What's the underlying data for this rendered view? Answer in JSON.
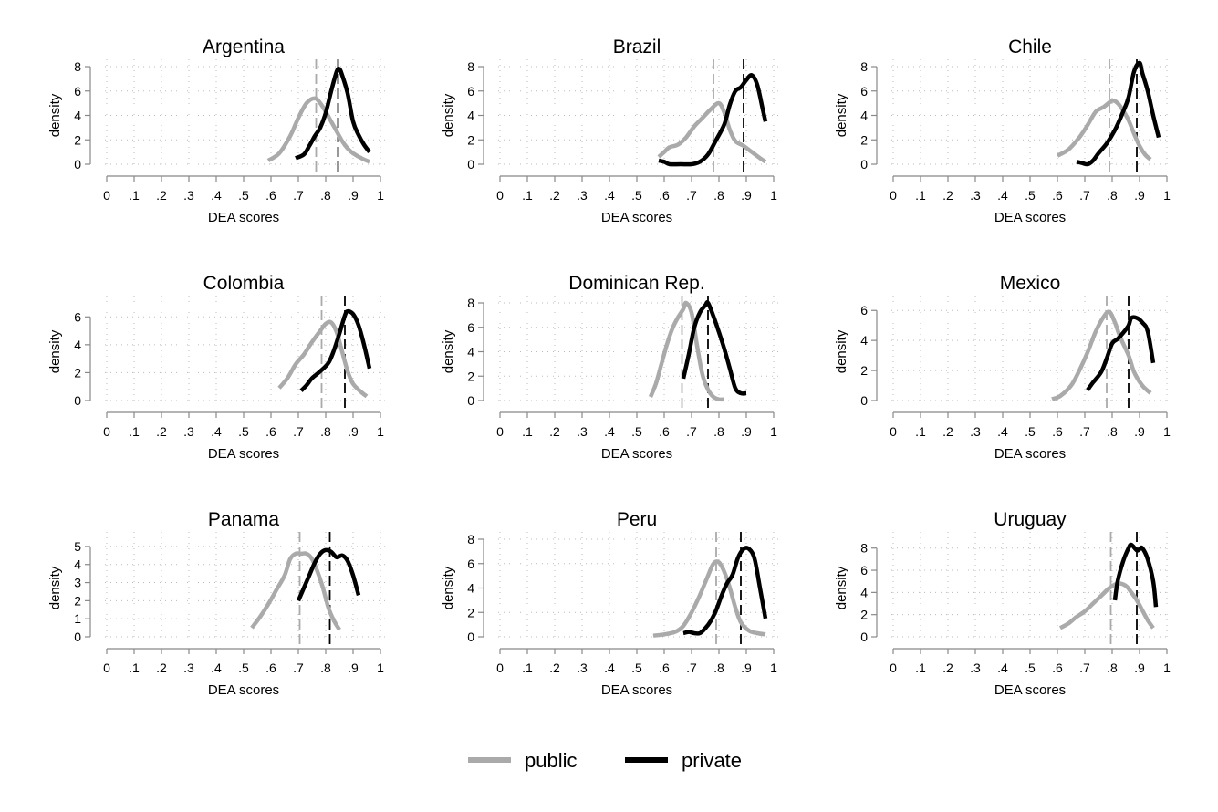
{
  "chart_data": {
    "type": "line",
    "layout": "3x3 small multiples",
    "legend": {
      "position": "bottom-center",
      "entries": [
        {
          "name": "public",
          "color": "#aaaaaa"
        },
        {
          "name": "private",
          "color": "#000000"
        }
      ]
    },
    "colors": {
      "public": "#aaaaaa",
      "private": "#000000",
      "grid": "#bbbbbb",
      "axis": "#888888"
    },
    "x_ticks": [
      "0",
      ".1",
      ".2",
      ".3",
      ".4",
      ".5",
      ".6",
      ".7",
      ".8",
      ".9",
      "1"
    ],
    "panels": [
      {
        "title": "Argentina",
        "xlabel": "DEA scores",
        "ylabel": "density",
        "xlim": [
          0,
          1
        ],
        "ylim": [
          0,
          8
        ],
        "y_ticks": [
          0,
          2,
          4,
          6,
          8
        ],
        "mean_public": 0.765,
        "mean_private": 0.845,
        "public": [
          [
            0.59,
            0.3
          ],
          [
            0.63,
            0.9
          ],
          [
            0.67,
            2.3
          ],
          [
            0.7,
            3.8
          ],
          [
            0.73,
            5.0
          ],
          [
            0.76,
            5.4
          ],
          [
            0.78,
            5.0
          ],
          [
            0.8,
            4.3
          ],
          [
            0.82,
            3.5
          ],
          [
            0.84,
            2.7
          ],
          [
            0.86,
            1.9
          ],
          [
            0.88,
            1.3
          ],
          [
            0.9,
            0.9
          ],
          [
            0.93,
            0.5
          ],
          [
            0.96,
            0.2
          ]
        ],
        "private": [
          [
            0.69,
            0.5
          ],
          [
            0.72,
            0.8
          ],
          [
            0.74,
            1.5
          ],
          [
            0.76,
            2.3
          ],
          [
            0.78,
            3.0
          ],
          [
            0.8,
            4.2
          ],
          [
            0.82,
            6.0
          ],
          [
            0.84,
            7.6
          ],
          [
            0.85,
            7.8
          ],
          [
            0.86,
            7.3
          ],
          [
            0.88,
            5.8
          ],
          [
            0.9,
            3.5
          ],
          [
            0.92,
            2.4
          ],
          [
            0.94,
            1.6
          ],
          [
            0.96,
            1.0
          ]
        ]
      },
      {
        "title": "Brazil",
        "xlabel": "DEA scores",
        "ylabel": "density",
        "xlim": [
          0,
          1
        ],
        "ylim": [
          0,
          8
        ],
        "y_ticks": [
          0,
          2,
          4,
          6,
          8
        ],
        "mean_public": 0.78,
        "mean_private": 0.89,
        "public": [
          [
            0.58,
            0.6
          ],
          [
            0.6,
            1.0
          ],
          [
            0.62,
            1.4
          ],
          [
            0.65,
            1.6
          ],
          [
            0.68,
            2.2
          ],
          [
            0.71,
            3.1
          ],
          [
            0.74,
            3.8
          ],
          [
            0.77,
            4.5
          ],
          [
            0.8,
            5.0
          ],
          [
            0.82,
            4.2
          ],
          [
            0.84,
            2.8
          ],
          [
            0.86,
            1.9
          ],
          [
            0.89,
            1.5
          ],
          [
            0.92,
            1.0
          ],
          [
            0.95,
            0.5
          ],
          [
            0.97,
            0.2
          ]
        ],
        "private": [
          [
            0.58,
            0.3
          ],
          [
            0.6,
            0.2
          ],
          [
            0.62,
            0.0
          ],
          [
            0.66,
            0.0
          ],
          [
            0.7,
            0.0
          ],
          [
            0.73,
            0.2
          ],
          [
            0.76,
            0.8
          ],
          [
            0.79,
            2.0
          ],
          [
            0.82,
            3.3
          ],
          [
            0.84,
            4.9
          ],
          [
            0.86,
            6.0
          ],
          [
            0.88,
            6.3
          ],
          [
            0.9,
            6.9
          ],
          [
            0.92,
            7.3
          ],
          [
            0.94,
            6.5
          ],
          [
            0.96,
            4.5
          ],
          [
            0.97,
            3.5
          ]
        ]
      },
      {
        "title": "Chile",
        "xlabel": "DEA scores",
        "ylabel": "density",
        "xlim": [
          0,
          1
        ],
        "ylim": [
          0,
          8
        ],
        "y_ticks": [
          0,
          2,
          4,
          6,
          8
        ],
        "mean_public": 0.79,
        "mean_private": 0.89,
        "public": [
          [
            0.6,
            0.7
          ],
          [
            0.64,
            1.2
          ],
          [
            0.68,
            2.2
          ],
          [
            0.71,
            3.2
          ],
          [
            0.74,
            4.3
          ],
          [
            0.77,
            4.7
          ],
          [
            0.8,
            5.2
          ],
          [
            0.82,
            5.0
          ],
          [
            0.84,
            4.4
          ],
          [
            0.86,
            3.6
          ],
          [
            0.88,
            2.5
          ],
          [
            0.9,
            1.5
          ],
          [
            0.92,
            0.8
          ],
          [
            0.94,
            0.4
          ]
        ],
        "private": [
          [
            0.67,
            0.2
          ],
          [
            0.69,
            0.1
          ],
          [
            0.71,
            0.0
          ],
          [
            0.73,
            0.3
          ],
          [
            0.75,
            0.9
          ],
          [
            0.78,
            1.7
          ],
          [
            0.81,
            2.8
          ],
          [
            0.84,
            4.3
          ],
          [
            0.86,
            5.5
          ],
          [
            0.88,
            7.6
          ],
          [
            0.9,
            8.3
          ],
          [
            0.91,
            7.5
          ],
          [
            0.93,
            6.0
          ],
          [
            0.95,
            4.0
          ],
          [
            0.97,
            2.2
          ]
        ]
      },
      {
        "title": "Colombia",
        "xlabel": "DEA scores",
        "ylabel": "density",
        "xlim": [
          0,
          1
        ],
        "ylim": [
          0,
          7
        ],
        "y_ticks": [
          0,
          2,
          4,
          6
        ],
        "mean_public": 0.785,
        "mean_private": 0.87,
        "public": [
          [
            0.63,
            0.9
          ],
          [
            0.66,
            1.6
          ],
          [
            0.69,
            2.6
          ],
          [
            0.72,
            3.3
          ],
          [
            0.75,
            4.2
          ],
          [
            0.78,
            5.0
          ],
          [
            0.8,
            5.5
          ],
          [
            0.82,
            5.6
          ],
          [
            0.84,
            4.9
          ],
          [
            0.86,
            3.5
          ],
          [
            0.88,
            2.1
          ],
          [
            0.9,
            1.2
          ],
          [
            0.93,
            0.6
          ],
          [
            0.95,
            0.3
          ]
        ],
        "private": [
          [
            0.71,
            0.7
          ],
          [
            0.73,
            1.1
          ],
          [
            0.75,
            1.6
          ],
          [
            0.78,
            2.1
          ],
          [
            0.81,
            2.7
          ],
          [
            0.83,
            3.6
          ],
          [
            0.85,
            4.8
          ],
          [
            0.87,
            6.1
          ],
          [
            0.88,
            6.4
          ],
          [
            0.9,
            6.2
          ],
          [
            0.92,
            5.4
          ],
          [
            0.94,
            4.0
          ],
          [
            0.96,
            2.3
          ]
        ]
      },
      {
        "title": "Dominican Rep.",
        "xlabel": "DEA scores",
        "ylabel": "density",
        "xlim": [
          0,
          1
        ],
        "ylim": [
          0,
          8
        ],
        "y_ticks": [
          0,
          2,
          4,
          6,
          8
        ],
        "mean_public": 0.665,
        "mean_private": 0.76,
        "public": [
          [
            0.55,
            0.3
          ],
          [
            0.57,
            1.4
          ],
          [
            0.59,
            3.0
          ],
          [
            0.61,
            4.6
          ],
          [
            0.63,
            5.9
          ],
          [
            0.65,
            6.8
          ],
          [
            0.67,
            7.5
          ],
          [
            0.68,
            8.0
          ],
          [
            0.7,
            7.2
          ],
          [
            0.72,
            4.5
          ],
          [
            0.74,
            2.1
          ],
          [
            0.76,
            0.9
          ],
          [
            0.78,
            0.3
          ],
          [
            0.8,
            0.1
          ],
          [
            0.82,
            0.1
          ]
        ],
        "private": [
          [
            0.67,
            1.8
          ],
          [
            0.69,
            3.8
          ],
          [
            0.71,
            6.0
          ],
          [
            0.73,
            7.2
          ],
          [
            0.75,
            7.8
          ],
          [
            0.76,
            8.0
          ],
          [
            0.78,
            6.9
          ],
          [
            0.8,
            5.6
          ],
          [
            0.82,
            4.2
          ],
          [
            0.84,
            2.6
          ],
          [
            0.86,
            1.0
          ],
          [
            0.88,
            0.6
          ],
          [
            0.9,
            0.6
          ]
        ]
      },
      {
        "title": "Mexico",
        "xlabel": "DEA scores",
        "ylabel": "density",
        "xlim": [
          0,
          1
        ],
        "ylim": [
          0,
          6.5
        ],
        "y_ticks": [
          0,
          2,
          4,
          6
        ],
        "mean_public": 0.78,
        "mean_private": 0.86,
        "public": [
          [
            0.58,
            0.1
          ],
          [
            0.61,
            0.3
          ],
          [
            0.65,
            1.0
          ],
          [
            0.68,
            2.0
          ],
          [
            0.71,
            3.2
          ],
          [
            0.74,
            4.6
          ],
          [
            0.77,
            5.6
          ],
          [
            0.79,
            5.9
          ],
          [
            0.81,
            5.2
          ],
          [
            0.83,
            4.2
          ],
          [
            0.86,
            3.0
          ],
          [
            0.88,
            1.9
          ],
          [
            0.91,
            1.0
          ],
          [
            0.94,
            0.5
          ]
        ],
        "private": [
          [
            0.71,
            0.7
          ],
          [
            0.73,
            1.2
          ],
          [
            0.76,
            1.9
          ],
          [
            0.78,
            2.8
          ],
          [
            0.8,
            3.8
          ],
          [
            0.82,
            4.1
          ],
          [
            0.84,
            4.5
          ],
          [
            0.86,
            5.0
          ],
          [
            0.87,
            5.5
          ],
          [
            0.89,
            5.5
          ],
          [
            0.91,
            5.2
          ],
          [
            0.93,
            4.6
          ],
          [
            0.95,
            2.5
          ]
        ]
      },
      {
        "title": "Panama",
        "xlabel": "DEA scores",
        "ylabel": "density",
        "xlim": [
          0,
          1
        ],
        "ylim": [
          0,
          5.4
        ],
        "y_ticks": [
          0,
          1,
          2,
          3,
          4,
          5
        ],
        "mean_public": 0.705,
        "mean_private": 0.815,
        "public": [
          [
            0.53,
            0.5
          ],
          [
            0.56,
            1.1
          ],
          [
            0.59,
            1.8
          ],
          [
            0.62,
            2.6
          ],
          [
            0.65,
            3.4
          ],
          [
            0.67,
            4.3
          ],
          [
            0.69,
            4.6
          ],
          [
            0.71,
            4.6
          ],
          [
            0.73,
            4.6
          ],
          [
            0.75,
            4.3
          ],
          [
            0.77,
            3.6
          ],
          [
            0.79,
            2.7
          ],
          [
            0.81,
            1.6
          ],
          [
            0.83,
            0.9
          ],
          [
            0.85,
            0.4
          ]
        ],
        "private": [
          [
            0.7,
            2.0
          ],
          [
            0.72,
            2.7
          ],
          [
            0.74,
            3.4
          ],
          [
            0.76,
            4.1
          ],
          [
            0.78,
            4.6
          ],
          [
            0.8,
            4.8
          ],
          [
            0.82,
            4.7
          ],
          [
            0.84,
            4.4
          ],
          [
            0.86,
            4.5
          ],
          [
            0.88,
            4.2
          ],
          [
            0.9,
            3.4
          ],
          [
            0.92,
            2.3
          ]
        ]
      },
      {
        "title": "Peru",
        "xlabel": "DEA scores",
        "ylabel": "density",
        "xlim": [
          0,
          1
        ],
        "ylim": [
          0,
          8
        ],
        "y_ticks": [
          0,
          2,
          4,
          6,
          8
        ],
        "mean_public": 0.79,
        "mean_private": 0.88,
        "public": [
          [
            0.56,
            0.1
          ],
          [
            0.6,
            0.2
          ],
          [
            0.64,
            0.4
          ],
          [
            0.67,
            0.9
          ],
          [
            0.7,
            2.0
          ],
          [
            0.73,
            3.4
          ],
          [
            0.76,
            5.0
          ],
          [
            0.78,
            6.0
          ],
          [
            0.8,
            6.1
          ],
          [
            0.82,
            5.3
          ],
          [
            0.84,
            4.0
          ],
          [
            0.86,
            2.4
          ],
          [
            0.88,
            1.2
          ],
          [
            0.91,
            0.5
          ],
          [
            0.94,
            0.3
          ],
          [
            0.97,
            0.2
          ]
        ],
        "private": [
          [
            0.67,
            0.3
          ],
          [
            0.69,
            0.4
          ],
          [
            0.71,
            0.3
          ],
          [
            0.73,
            0.3
          ],
          [
            0.75,
            0.7
          ],
          [
            0.77,
            1.3
          ],
          [
            0.79,
            2.2
          ],
          [
            0.81,
            3.4
          ],
          [
            0.83,
            4.4
          ],
          [
            0.85,
            5.1
          ],
          [
            0.87,
            6.5
          ],
          [
            0.89,
            7.2
          ],
          [
            0.91,
            7.2
          ],
          [
            0.93,
            6.4
          ],
          [
            0.95,
            4.0
          ],
          [
            0.97,
            1.5
          ]
        ]
      },
      {
        "title": "Uruguay",
        "xlabel": "DEA scores",
        "ylabel": "density",
        "xlim": [
          0,
          1
        ],
        "ylim": [
          0,
          8.8
        ],
        "y_ticks": [
          0,
          2,
          4,
          6,
          8
        ],
        "mean_public": 0.795,
        "mean_private": 0.89,
        "public": [
          [
            0.61,
            0.8
          ],
          [
            0.64,
            1.2
          ],
          [
            0.67,
            1.8
          ],
          [
            0.7,
            2.3
          ],
          [
            0.73,
            3.0
          ],
          [
            0.76,
            3.7
          ],
          [
            0.79,
            4.4
          ],
          [
            0.82,
            4.8
          ],
          [
            0.85,
            4.6
          ],
          [
            0.87,
            4.0
          ],
          [
            0.89,
            3.3
          ],
          [
            0.91,
            2.4
          ],
          [
            0.93,
            1.5
          ],
          [
            0.95,
            0.8
          ]
        ],
        "private": [
          [
            0.81,
            3.3
          ],
          [
            0.82,
            5.0
          ],
          [
            0.84,
            6.8
          ],
          [
            0.86,
            8.0
          ],
          [
            0.87,
            8.3
          ],
          [
            0.89,
            7.8
          ],
          [
            0.9,
            7.9
          ],
          [
            0.91,
            8.0
          ],
          [
            0.93,
            7.0
          ],
          [
            0.95,
            5.0
          ],
          [
            0.96,
            2.7
          ]
        ]
      }
    ]
  }
}
